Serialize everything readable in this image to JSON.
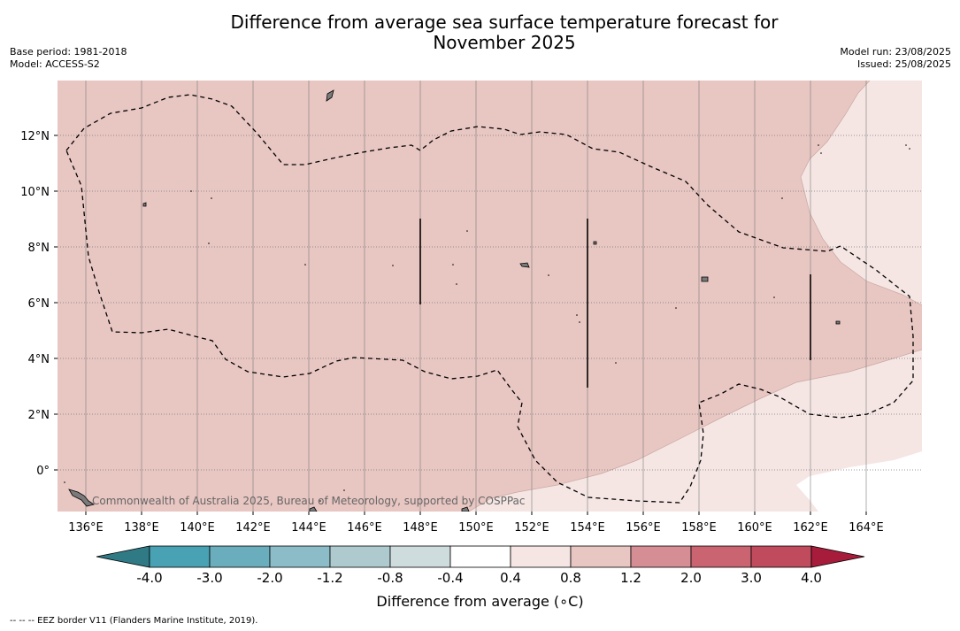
{
  "title_line1": "Difference from average sea surface temperature forecast for",
  "title_line2": "November 2025",
  "base_period": "Base period: 1981-2018",
  "model": "Model: ACCESS-S2",
  "model_run": "Model run: 23/08/2025",
  "issued": "Issued: 25/08/2025",
  "copyright": "Commonwealth of Australia 2025, Bureau of Meteorology, supported by COSPPac",
  "footnote": "--  --  -- EEZ border V11 (Flanders Marine Institute, 2019).",
  "colorbar_label": "Difference from average (∘C)",
  "colors": {
    "land": "#7a7a7a",
    "anomaly_0p8_1p2": "#e8c6c2",
    "anomaly_0p4_0p8": "#f5e6e4",
    "anomaly_m0p4_0p4": "#ffffff",
    "grid": "#7a7a7a"
  },
  "map": {
    "lon_ticks": [
      "136°E",
      "138°E",
      "140°E",
      "142°E",
      "144°E",
      "146°E",
      "148°E",
      "150°E",
      "152°E",
      "154°E",
      "156°E",
      "158°E",
      "160°E",
      "162°E",
      "164°E"
    ],
    "lat_ticks": [
      "12°N",
      "10°N",
      "8°N",
      "6°N",
      "4°N",
      "2°N",
      "0°"
    ],
    "lon_values": [
      136,
      138,
      140,
      142,
      144,
      146,
      148,
      150,
      152,
      154,
      156,
      158,
      160,
      162,
      164
    ],
    "lat_values": [
      12,
      10,
      8,
      6,
      4,
      2,
      0
    ]
  },
  "colorbar": {
    "ticks": [
      "-4.0",
      "-3.0",
      "-2.0",
      "-1.2",
      "-0.8",
      "-0.4",
      "0.4",
      "0.8",
      "1.2",
      "2.0",
      "3.0",
      "4.0"
    ],
    "colors": [
      "#2f7a85",
      "#49a2b3",
      "#6aadbc",
      "#8bbcc7",
      "#aecacf",
      "#cfdcdd",
      "#ffffff",
      "#f5e6e4",
      "#e8c6c2",
      "#d48e94",
      "#c96470",
      "#bf4b5c",
      "#a81c3b"
    ]
  }
}
